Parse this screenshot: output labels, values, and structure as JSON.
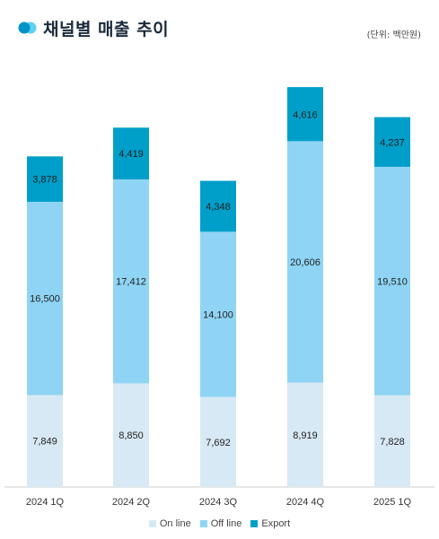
{
  "header": {
    "title": "채널별 매출 추이",
    "unit": "(단위: 백만원)",
    "icon": "overlapping-circles-icon"
  },
  "colors": {
    "online": "#d7e9f4",
    "offline": "#8fd4f4",
    "export": "#009fc9",
    "accent_light": "#5ed0f0",
    "accent_dark": "#0093c8"
  },
  "chart_data": {
    "type": "bar",
    "stacked": true,
    "categories": [
      "2024 1Q",
      "2024 2Q",
      "2024 3Q",
      "2024 4Q",
      "2025 1Q"
    ],
    "series": [
      {
        "name": "On line",
        "values": [
          7849,
          8850,
          7692,
          8919,
          7828
        ]
      },
      {
        "name": "Off line",
        "values": [
          16500,
          17412,
          14100,
          20606,
          19510
        ]
      },
      {
        "name": "Export",
        "values": [
          3878,
          4419,
          4348,
          4616,
          4237
        ]
      }
    ],
    "data_labels": [
      [
        "7,849",
        "8,850",
        "7,692",
        "8,919",
        "7,828"
      ],
      [
        "16,500",
        "17,412",
        "14,100",
        "20,606",
        "19,510"
      ],
      [
        "3,878",
        "4,419",
        "4,348",
        "4,616",
        "4,237"
      ]
    ],
    "title": "",
    "xlabel": "",
    "ylabel": "",
    "grid": false,
    "legend_position": "bottom-center"
  }
}
